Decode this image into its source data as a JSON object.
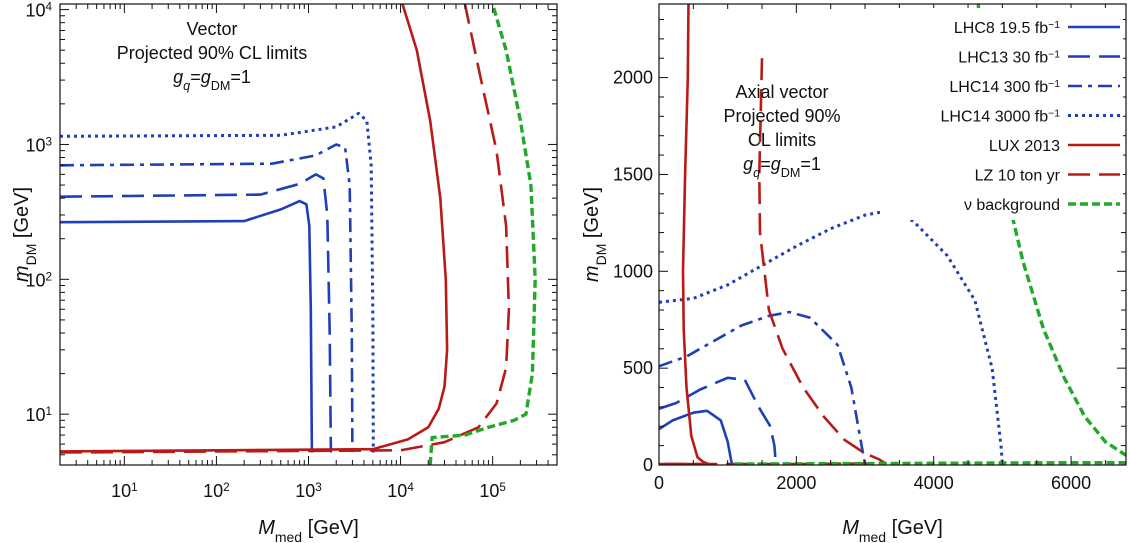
{
  "figure": {
    "width": 1129,
    "height": 543
  },
  "chart_data": [
    {
      "type": "line",
      "panel": "left",
      "xscale": "log",
      "yscale": "log",
      "xlim": [
        2,
        500000
      ],
      "ylim": [
        4.2,
        11000
      ],
      "xlabel_main": "M",
      "xlabel_sub": "med",
      "xlabel_unit": " [GeV]",
      "ylabel_main": "m",
      "ylabel_sub": "DM",
      "ylabel_unit": " [GeV]",
      "xticks": [
        {
          "v": 10,
          "base": "10",
          "exp": "1"
        },
        {
          "v": 100,
          "base": "10",
          "exp": "2"
        },
        {
          "v": 1000,
          "base": "10",
          "exp": "3"
        },
        {
          "v": 10000,
          "base": "10",
          "exp": "4"
        },
        {
          "v": 100000,
          "base": "10",
          "exp": "5"
        }
      ],
      "yticks": [
        {
          "v": 10,
          "base": "10",
          "exp": "1"
        },
        {
          "v": 100,
          "base": "10",
          "exp": "2"
        },
        {
          "v": 1000,
          "base": "10",
          "exp": "3"
        },
        {
          "v": 10000,
          "base": "10",
          "exp": "4"
        }
      ],
      "annotation": {
        "line1": "Vector",
        "line2": "Projected 90% CL limits",
        "g1": "g",
        "g1_sub": "q",
        "eq": "=",
        "g2": "g",
        "g2_sub": "DM",
        "tail": "=1"
      },
      "series": [
        {
          "style": "lhc8",
          "points": [
            [
              2,
              265
            ],
            [
              200,
              270
            ],
            [
              500,
              330
            ],
            [
              800,
              380
            ],
            [
              950,
              360
            ],
            [
              1020,
              250
            ],
            [
              1060,
              60
            ],
            [
              1080,
              10
            ],
            [
              1090,
              5.2
            ]
          ]
        },
        {
          "style": "lhc13",
          "points": [
            [
              2,
              410
            ],
            [
              300,
              425
            ],
            [
              800,
              510
            ],
            [
              1200,
              600
            ],
            [
              1450,
              560
            ],
            [
              1600,
              300
            ],
            [
              1700,
              40
            ],
            [
              1750,
              5.2
            ]
          ]
        },
        {
          "style": "lhc14a",
          "points": [
            [
              2,
              700
            ],
            [
              400,
              720
            ],
            [
              1200,
              830
            ],
            [
              2000,
              1000
            ],
            [
              2500,
              950
            ],
            [
              2800,
              500
            ],
            [
              2950,
              40
            ],
            [
              3000,
              5.2
            ]
          ]
        },
        {
          "style": "lhc14b",
          "points": [
            [
              2,
              1150
            ],
            [
              500,
              1170
            ],
            [
              2000,
              1350
            ],
            [
              3500,
              1700
            ],
            [
              4300,
              1500
            ],
            [
              4800,
              700
            ],
            [
              5000,
              50
            ],
            [
              5050,
              5.2
            ]
          ]
        },
        {
          "style": "lux",
          "points": [
            [
              2,
              5.3
            ],
            [
              5000,
              5.5
            ],
            [
              12000,
              6.5
            ],
            [
              20000,
              8
            ],
            [
              26000,
              11
            ],
            [
              30000,
              16
            ],
            [
              32000,
              30
            ],
            [
              31000,
              100
            ],
            [
              27000,
              400
            ],
            [
              21000,
              1500
            ],
            [
              15000,
              5000
            ],
            [
              10500,
              11000
            ]
          ]
        },
        {
          "style": "lz",
          "points": [
            [
              2,
              5.2
            ],
            [
              10000,
              5.4
            ],
            [
              30000,
              6.2
            ],
            [
              70000,
              8
            ],
            [
              110000,
              12
            ],
            [
              140000,
              22
            ],
            [
              150000,
              60
            ],
            [
              140000,
              250
            ],
            [
              110000,
              900
            ],
            [
              75000,
              3000
            ],
            [
              50000,
              11000
            ]
          ]
        },
        {
          "style": "nu",
          "points": [
            [
              21000,
              4.2
            ],
            [
              22000,
              6.7
            ],
            [
              50000,
              7
            ],
            [
              90000,
              8
            ],
            [
              170000,
              9
            ],
            [
              230000,
              10
            ],
            [
              270000,
              20
            ],
            [
              290000,
              100
            ],
            [
              260000,
              500
            ],
            [
              200000,
              1500
            ],
            [
              140000,
              5000
            ],
            [
              100000,
              11000
            ]
          ]
        }
      ]
    },
    {
      "type": "line",
      "panel": "right",
      "xscale": "linear",
      "yscale": "linear",
      "xlim": [
        0,
        6800
      ],
      "ylim": [
        0,
        2380
      ],
      "xlabel_main": "M",
      "xlabel_sub": "med",
      "xlabel_unit": " [GeV]",
      "ylabel_main": "m",
      "ylabel_sub": "DM",
      "ylabel_unit": " [GeV]",
      "xticks": [
        0,
        2000,
        4000,
        6000
      ],
      "yticks": [
        0,
        500,
        1000,
        1500,
        2000
      ],
      "annotation": {
        "line1": "Axial vector",
        "line2": "Projected 90%",
        "line3": "CL limits",
        "g1": "g",
        "g1_sub": "q",
        "eq": "=",
        "g2": "g",
        "g2_sub": "DM",
        "tail": "=1"
      },
      "legend": [
        {
          "style": "lhc8",
          "label": "LHC8 19.5 fb",
          "sup": "−1"
        },
        {
          "style": "lhc13",
          "label": "LHC13 30 fb",
          "sup": "−1"
        },
        {
          "style": "lhc14a",
          "label": "LHC14 300 fb",
          "sup": "−1"
        },
        {
          "style": "lhc14b",
          "label": "LHC14 3000 fb",
          "sup": "−1"
        },
        {
          "style": "lux",
          "label": "LUX 2013",
          "sup": ""
        },
        {
          "style": "lz",
          "label": "LZ 10 ton yr",
          "sup": ""
        },
        {
          "style": "nu",
          "label": "ν background",
          "sup": ""
        }
      ],
      "series": [
        {
          "style": "lhc8",
          "points": [
            [
              0,
              185
            ],
            [
              200,
              230
            ],
            [
              500,
              270
            ],
            [
              700,
              280
            ],
            [
              900,
              230
            ],
            [
              1000,
              120
            ],
            [
              1060,
              5
            ]
          ]
        },
        {
          "style": "lhc13",
          "points": [
            [
              0,
              290
            ],
            [
              250,
              320
            ],
            [
              600,
              390
            ],
            [
              1000,
              450
            ],
            [
              1250,
              440
            ],
            [
              1450,
              300
            ],
            [
              1620,
              200
            ],
            [
              1680,
              100
            ],
            [
              1700,
              5
            ]
          ]
        },
        {
          "style": "lhc14a",
          "points": [
            [
              0,
              510
            ],
            [
              400,
              560
            ],
            [
              800,
              640
            ],
            [
              1200,
              720
            ],
            [
              1600,
              770
            ],
            [
              1900,
              790
            ],
            [
              2200,
              760
            ],
            [
              2600,
              620
            ],
            [
              2800,
              400
            ],
            [
              2950,
              100
            ],
            [
              3000,
              5
            ]
          ]
        },
        {
          "style": "lhc14b",
          "points": [
            [
              0,
              840
            ],
            [
              500,
              860
            ],
            [
              1000,
              930
            ],
            [
              1500,
              1030
            ],
            [
              2000,
              1130
            ],
            [
              2500,
              1220
            ],
            [
              3000,
              1290
            ],
            [
              3300,
              1310
            ],
            [
              3700,
              1260
            ],
            [
              4200,
              1080
            ],
            [
              4600,
              850
            ],
            [
              4850,
              500
            ],
            [
              4980,
              100
            ],
            [
              5000,
              5
            ]
          ]
        },
        {
          "style": "lux",
          "points": [
            [
              430,
              2380
            ],
            [
              420,
              2000
            ],
            [
              380,
              1500
            ],
            [
              350,
              1000
            ],
            [
              360,
              700
            ],
            [
              400,
              400
            ],
            [
              470,
              150
            ],
            [
              560,
              40
            ],
            [
              650,
              15
            ],
            [
              720,
              5
            ],
            [
              400,
              5
            ],
            [
              0,
              5
            ]
          ]
        },
        {
          "style": "lz",
          "points": [
            [
              1500,
              2100
            ],
            [
              1460,
              1500
            ],
            [
              1470,
              1200
            ],
            [
              1600,
              800
            ],
            [
              1800,
              600
            ],
            [
              2100,
              400
            ],
            [
              2400,
              250
            ],
            [
              2700,
              130
            ],
            [
              3000,
              60
            ],
            [
              3200,
              30
            ],
            [
              3300,
              8
            ],
            [
              2000,
              5
            ],
            [
              0,
              5
            ]
          ]
        },
        {
          "style": "nu",
          "points": [
            [
              1100,
              5
            ],
            [
              2000,
              6
            ],
            [
              3200,
              8
            ],
            [
              4500,
              10
            ],
            [
              6000,
              12
            ],
            [
              6800,
              12
            ]
          ]
        },
        {
          "style": "nu",
          "points": [
            [
              4650,
              2380
            ],
            [
              4700,
              2000
            ],
            [
              4800,
              1750
            ],
            [
              5000,
              1500
            ],
            [
              5300,
              1050
            ],
            [
              5600,
              700
            ],
            [
              5900,
              450
            ],
            [
              6200,
              250
            ],
            [
              6500,
              120
            ],
            [
              6800,
              50
            ]
          ]
        }
      ]
    }
  ]
}
